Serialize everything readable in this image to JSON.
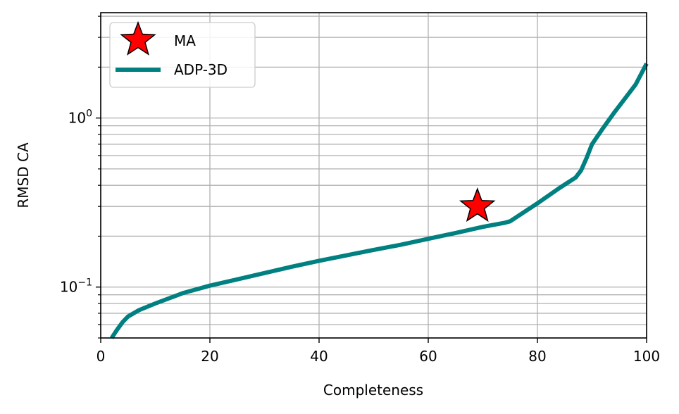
{
  "chart_data": {
    "type": "line",
    "xlabel": "Completeness",
    "ylabel": "RMSD CA",
    "xlim": [
      0,
      100
    ],
    "ylim": [
      0.05,
      4.2
    ],
    "yscale": "log",
    "grid": true,
    "legend_position": "upper-left",
    "x_ticks": [
      {
        "value": 0,
        "label": "0"
      },
      {
        "value": 20,
        "label": "20"
      },
      {
        "value": 40,
        "label": "40"
      },
      {
        "value": 60,
        "label": "60"
      },
      {
        "value": 80,
        "label": "80"
      },
      {
        "value": 100,
        "label": "100"
      }
    ],
    "y_major_ticks": [
      {
        "value": 0.1,
        "base": "10",
        "exponent": "−1"
      },
      {
        "value": 1,
        "base": "10",
        "exponent": "0"
      }
    ],
    "y_minor_ticks": [
      0.05,
      0.06,
      0.07,
      0.08,
      0.09,
      0.2,
      0.3,
      0.4,
      0.5,
      0.6,
      0.7,
      0.8,
      0.9,
      2,
      3,
      4
    ],
    "series": [
      {
        "name": "ADP-3D",
        "kind": "line",
        "color": "#008080",
        "x": [
          2,
          3,
          4,
          5,
          7,
          10,
          15,
          20,
          25,
          30,
          35,
          40,
          45,
          50,
          55,
          60,
          65,
          70,
          74,
          75,
          80,
          84,
          87,
          88,
          89,
          90,
          92,
          94,
          96,
          98,
          100
        ],
        "y": [
          0.05,
          0.056,
          0.062,
          0.067,
          0.073,
          0.08,
          0.092,
          0.102,
          0.111,
          0.121,
          0.132,
          0.143,
          0.154,
          0.166,
          0.178,
          0.193,
          0.209,
          0.227,
          0.24,
          0.245,
          0.313,
          0.385,
          0.445,
          0.49,
          0.58,
          0.7,
          0.87,
          1.07,
          1.3,
          1.58,
          2.1
        ]
      },
      {
        "name": "MA",
        "kind": "marker",
        "marker": "star",
        "color": "#ff0000",
        "edgecolor": "#000000",
        "x": [
          69
        ],
        "y": [
          0.3
        ]
      }
    ]
  }
}
